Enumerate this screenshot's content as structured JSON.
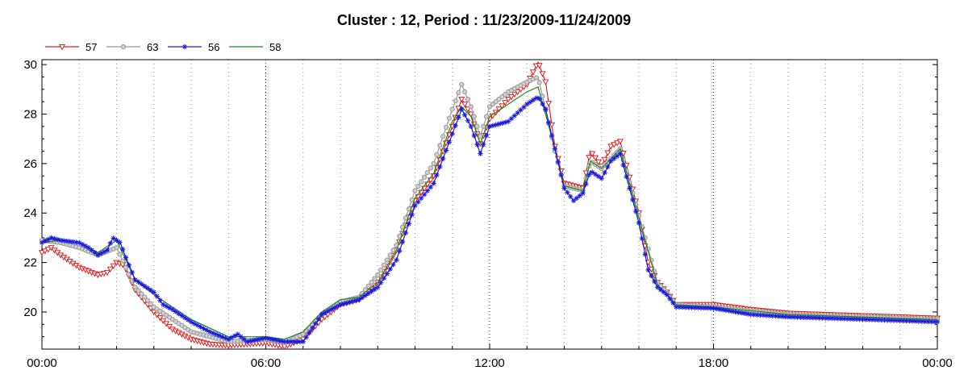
{
  "chart_data": {
    "type": "line",
    "title": "Cluster : 12, Period : 11/23/2009-11/24/2009",
    "xlabel": "",
    "ylabel": "",
    "x_unit": "hours",
    "xlim": [
      0,
      24
    ],
    "ylim": [
      18.5,
      30.2
    ],
    "x_tick_labels": [
      {
        "x": 0,
        "label": "00:00"
      },
      {
        "x": 6,
        "label": "06:00"
      },
      {
        "x": 12,
        "label": "12:00"
      },
      {
        "x": 18,
        "label": "18:00"
      },
      {
        "x": 24,
        "label": "00:00"
      }
    ],
    "y_ticks": [
      20,
      22,
      24,
      26,
      28,
      30
    ],
    "grid": "dotted vertical lines at each hour; darker at 06:00, 12:00, 18:00",
    "legend_position": "top-left",
    "series": [
      {
        "name": "57",
        "color": "#dd2222",
        "marker": "triangle-down",
        "points": [
          [
            0,
            22.4
          ],
          [
            0.25,
            22.6
          ],
          [
            0.5,
            22.3
          ],
          [
            1,
            21.8
          ],
          [
            1.5,
            21.5
          ],
          [
            1.75,
            21.6
          ],
          [
            2,
            22.0
          ],
          [
            2.2,
            21.9
          ],
          [
            2.5,
            20.9
          ],
          [
            3,
            20.0
          ],
          [
            3.5,
            19.3
          ],
          [
            4,
            18.9
          ],
          [
            4.5,
            18.7
          ],
          [
            5,
            18.65
          ],
          [
            5.5,
            18.7
          ],
          [
            6,
            18.75
          ],
          [
            6.5,
            18.6
          ],
          [
            7,
            18.9
          ],
          [
            7.5,
            19.7
          ],
          [
            8,
            20.3
          ],
          [
            8.5,
            20.5
          ],
          [
            9,
            21.2
          ],
          [
            9.5,
            22.5
          ],
          [
            10,
            24.5
          ],
          [
            10.5,
            25.5
          ],
          [
            11,
            27.5
          ],
          [
            11.25,
            28.6
          ],
          [
            11.5,
            28.0
          ],
          [
            11.75,
            26.8
          ],
          [
            12,
            27.8
          ],
          [
            12.5,
            28.6
          ],
          [
            13,
            29.2
          ],
          [
            13.3,
            30.1
          ],
          [
            13.5,
            29.3
          ],
          [
            13.75,
            26.7
          ],
          [
            14,
            25.2
          ],
          [
            14.5,
            25.0
          ],
          [
            14.7,
            26.5
          ],
          [
            15,
            25.9
          ],
          [
            15.25,
            26.7
          ],
          [
            15.5,
            26.9
          ],
          [
            16,
            24.0
          ],
          [
            16.25,
            22.0
          ],
          [
            16.5,
            21.2
          ],
          [
            16.75,
            20.8
          ],
          [
            17,
            20.3
          ],
          [
            18,
            20.3
          ],
          [
            19,
            20.1
          ],
          [
            20,
            19.95
          ],
          [
            21,
            19.9
          ],
          [
            22,
            19.85
          ],
          [
            23,
            19.8
          ],
          [
            24,
            19.75
          ]
        ]
      },
      {
        "name": "63",
        "color": "#999999",
        "marker": "circle",
        "points": [
          [
            0,
            22.9
          ],
          [
            0.5,
            22.8
          ],
          [
            1,
            22.6
          ],
          [
            1.5,
            22.3
          ],
          [
            2,
            22.6
          ],
          [
            2.5,
            21.0
          ],
          [
            3,
            20.2
          ],
          [
            4,
            19.2
          ],
          [
            5,
            18.8
          ],
          [
            6,
            18.9
          ],
          [
            6.5,
            18.75
          ],
          [
            7,
            19.1
          ],
          [
            7.5,
            19.9
          ],
          [
            8,
            20.4
          ],
          [
            8.5,
            20.6
          ],
          [
            9,
            21.5
          ],
          [
            9.5,
            22.7
          ],
          [
            10,
            24.9
          ],
          [
            10.5,
            26.0
          ],
          [
            11,
            28.2
          ],
          [
            11.25,
            29.2
          ],
          [
            11.5,
            28.3
          ],
          [
            11.75,
            27.1
          ],
          [
            12,
            28.3
          ],
          [
            12.5,
            28.9
          ],
          [
            13,
            29.3
          ],
          [
            13.3,
            29.5
          ],
          [
            13.75,
            26.5
          ],
          [
            14,
            25.1
          ],
          [
            14.5,
            24.9
          ],
          [
            14.7,
            26.1
          ],
          [
            15,
            25.8
          ],
          [
            15.5,
            26.6
          ],
          [
            16,
            23.9
          ],
          [
            16.5,
            21.2
          ],
          [
            17,
            20.3
          ],
          [
            18,
            20.2
          ],
          [
            20,
            19.9
          ],
          [
            22,
            19.8
          ],
          [
            24,
            19.7
          ]
        ]
      },
      {
        "name": "56",
        "color": "#1a1adc",
        "marker": "asterisk",
        "points": [
          [
            0,
            22.8
          ],
          [
            0.25,
            23.0
          ],
          [
            0.5,
            22.9
          ],
          [
            1,
            22.8
          ],
          [
            1.25,
            22.6
          ],
          [
            1.5,
            22.3
          ],
          [
            1.75,
            22.5
          ],
          [
            1.9,
            23.0
          ],
          [
            2.1,
            22.8
          ],
          [
            2.25,
            22.2
          ],
          [
            2.5,
            21.3
          ],
          [
            3,
            20.8
          ],
          [
            3.25,
            20.3
          ],
          [
            3.5,
            20.1
          ],
          [
            4,
            19.6
          ],
          [
            4.5,
            19.2
          ],
          [
            5,
            18.9
          ],
          [
            5.25,
            19.1
          ],
          [
            5.5,
            18.8
          ],
          [
            6,
            18.95
          ],
          [
            6.5,
            18.8
          ],
          [
            7,
            18.8
          ],
          [
            7.5,
            19.9
          ],
          [
            8,
            20.3
          ],
          [
            8.5,
            20.5
          ],
          [
            9,
            21.0
          ],
          [
            9.5,
            22.1
          ],
          [
            10,
            24.3
          ],
          [
            10.5,
            25.2
          ],
          [
            11,
            27.2
          ],
          [
            11.25,
            28.2
          ],
          [
            11.5,
            27.5
          ],
          [
            11.75,
            26.4
          ],
          [
            12,
            27.5
          ],
          [
            12.5,
            27.7
          ],
          [
            13,
            28.4
          ],
          [
            13.3,
            28.7
          ],
          [
            13.5,
            28.2
          ],
          [
            13.75,
            26.6
          ],
          [
            14,
            25.0
          ],
          [
            14.25,
            24.5
          ],
          [
            14.5,
            24.8
          ],
          [
            14.7,
            25.7
          ],
          [
            15,
            25.4
          ],
          [
            15.25,
            26.1
          ],
          [
            15.5,
            26.4
          ],
          [
            16,
            23.6
          ],
          [
            16.25,
            21.7
          ],
          [
            16.5,
            21.0
          ],
          [
            16.75,
            20.7
          ],
          [
            17,
            20.2
          ],
          [
            18,
            20.15
          ],
          [
            19,
            19.9
          ],
          [
            20,
            19.8
          ],
          [
            21,
            19.75
          ],
          [
            22,
            19.7
          ],
          [
            23,
            19.65
          ],
          [
            24,
            19.6
          ]
        ]
      },
      {
        "name": "58",
        "color": "#228B22",
        "marker": "none",
        "points": [
          [
            0,
            22.8
          ],
          [
            0.5,
            22.9
          ],
          [
            1,
            22.8
          ],
          [
            1.5,
            22.4
          ],
          [
            2,
            22.9
          ],
          [
            2.5,
            21.3
          ],
          [
            3,
            20.7
          ],
          [
            4,
            19.7
          ],
          [
            5,
            19.0
          ],
          [
            6,
            19.0
          ],
          [
            6.5,
            18.9
          ],
          [
            7,
            19.2
          ],
          [
            7.5,
            20.0
          ],
          [
            8,
            20.5
          ],
          [
            8.5,
            20.6
          ],
          [
            9,
            21.2
          ],
          [
            9.5,
            22.5
          ],
          [
            10,
            24.6
          ],
          [
            10.5,
            25.6
          ],
          [
            11,
            27.7
          ],
          [
            11.25,
            28.3
          ],
          [
            11.5,
            27.9
          ],
          [
            11.75,
            26.8
          ],
          [
            12,
            27.9
          ],
          [
            12.5,
            28.4
          ],
          [
            13,
            28.9
          ],
          [
            13.3,
            29.1
          ],
          [
            13.75,
            26.6
          ],
          [
            14,
            25.1
          ],
          [
            14.5,
            24.9
          ],
          [
            14.7,
            26.1
          ],
          [
            15,
            25.8
          ],
          [
            15.5,
            26.6
          ],
          [
            16,
            23.8
          ],
          [
            16.5,
            21.1
          ],
          [
            17,
            20.3
          ],
          [
            18,
            20.2
          ],
          [
            20,
            19.9
          ],
          [
            22,
            19.8
          ],
          [
            24,
            19.7
          ]
        ]
      }
    ]
  }
}
